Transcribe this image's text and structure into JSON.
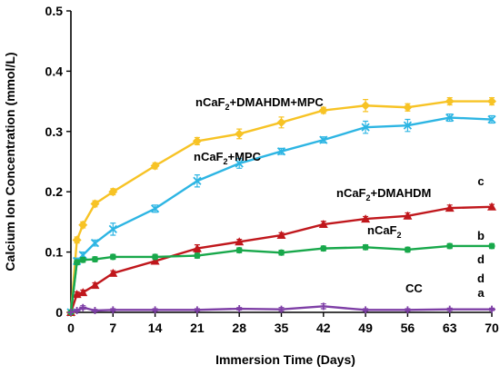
{
  "chart_data": {
    "type": "line",
    "xlabel": "Immersion Time (Days)",
    "ylabel": "Calcium Ion Concentration (mmol/L)",
    "xlim": [
      0,
      70
    ],
    "ylim": [
      0,
      0.5
    ],
    "xticks": [
      "0",
      "7",
      "14",
      "21",
      "28",
      "35",
      "42",
      "49",
      "56",
      "63",
      "70"
    ],
    "yticks": [
      "0",
      "0.1",
      "0.2",
      "0.3",
      "0.4",
      "0.5"
    ],
    "grid": false,
    "legend": "none",
    "series": [
      {
        "id": "dmahdm-mpc",
        "name_parts": [
          "nCaF",
          "2",
          "+DMAHDM+MPC"
        ],
        "letter": "d",
        "color": "#F7C325",
        "marker": "diamond",
        "x": [
          0,
          1,
          2,
          4,
          7,
          14,
          21,
          28,
          35,
          42,
          49,
          56,
          63,
          70
        ],
        "y": [
          0,
          0.12,
          0.145,
          0.18,
          0.2,
          0.243,
          0.284,
          0.296,
          0.315,
          0.335,
          0.343,
          0.34,
          0.35,
          0.35
        ],
        "err": [
          0,
          0.005,
          0.005,
          0.005,
          0.005,
          0.005,
          0.006,
          0.008,
          0.009,
          0.005,
          0.01,
          0.006,
          0.006,
          0.006
        ]
      },
      {
        "id": "mpc",
        "name_parts": [
          "nCaF",
          "2",
          "+MPC"
        ],
        "letter": "d",
        "color": "#2DB5E3",
        "marker": "x",
        "x": [
          0,
          1,
          2,
          4,
          7,
          14,
          21,
          28,
          35,
          42,
          49,
          56,
          63,
          70
        ],
        "y": [
          0,
          0.085,
          0.095,
          0.115,
          0.138,
          0.172,
          0.218,
          0.247,
          0.267,
          0.286,
          0.307,
          0.31,
          0.323,
          0.32
        ],
        "err": [
          0,
          0.005,
          0.005,
          0.005,
          0.01,
          0.006,
          0.01,
          0.008,
          0.005,
          0.005,
          0.01,
          0.01,
          0.006,
          0.006
        ]
      },
      {
        "id": "dmahdm",
        "name_parts": [
          "nCaF",
          "2",
          "+DMAHDM"
        ],
        "letter": "c",
        "color": "#C0171C",
        "marker": "triangle",
        "x": [
          0,
          1,
          2,
          4,
          7,
          14,
          21,
          28,
          35,
          42,
          49,
          56,
          63,
          70
        ],
        "y": [
          0,
          0.03,
          0.033,
          0.045,
          0.065,
          0.085,
          0.106,
          0.117,
          0.128,
          0.146,
          0.155,
          0.16,
          0.173,
          0.175
        ],
        "err": [
          0,
          0.004,
          0.004,
          0.004,
          0.004,
          0.004,
          0.006,
          0.004,
          0.004,
          0.005,
          0.004,
          0.005,
          0.005,
          0.004
        ]
      },
      {
        "id": "ncaf2",
        "name_parts": [
          "nCaF",
          "2",
          ""
        ],
        "letter": "b",
        "color": "#18A84B",
        "marker": "circle",
        "x": [
          0,
          1,
          2,
          4,
          7,
          14,
          21,
          28,
          35,
          42,
          49,
          56,
          63,
          70
        ],
        "y": [
          0,
          0.083,
          0.087,
          0.088,
          0.092,
          0.092,
          0.094,
          0.103,
          0.099,
          0.106,
          0.108,
          0.104,
          0.11,
          0.11
        ],
        "err": [
          0,
          0.004,
          0.004,
          0.004,
          0.004,
          0.004,
          0.004,
          0.004,
          0.004,
          0.004,
          0.004,
          0.004,
          0.004,
          0.004
        ]
      },
      {
        "id": "cc",
        "name_parts": [
          "CC",
          "",
          ""
        ],
        "letter": "a",
        "color": "#7E3FA6",
        "marker": "plus",
        "x": [
          0,
          1,
          2,
          4,
          7,
          14,
          21,
          28,
          35,
          42,
          49,
          56,
          63,
          70
        ],
        "y": [
          0,
          0.003,
          0.008,
          0.003,
          0.004,
          0.004,
          0.004,
          0.006,
          0.005,
          0.01,
          0.004,
          0.004,
          0.005,
          0.005
        ],
        "err": [
          0,
          0.002,
          0.003,
          0.002,
          0.002,
          0.002,
          0.002,
          0.002,
          0.003,
          0.004,
          0.002,
          0.002,
          0.002,
          0.002
        ]
      }
    ]
  }
}
